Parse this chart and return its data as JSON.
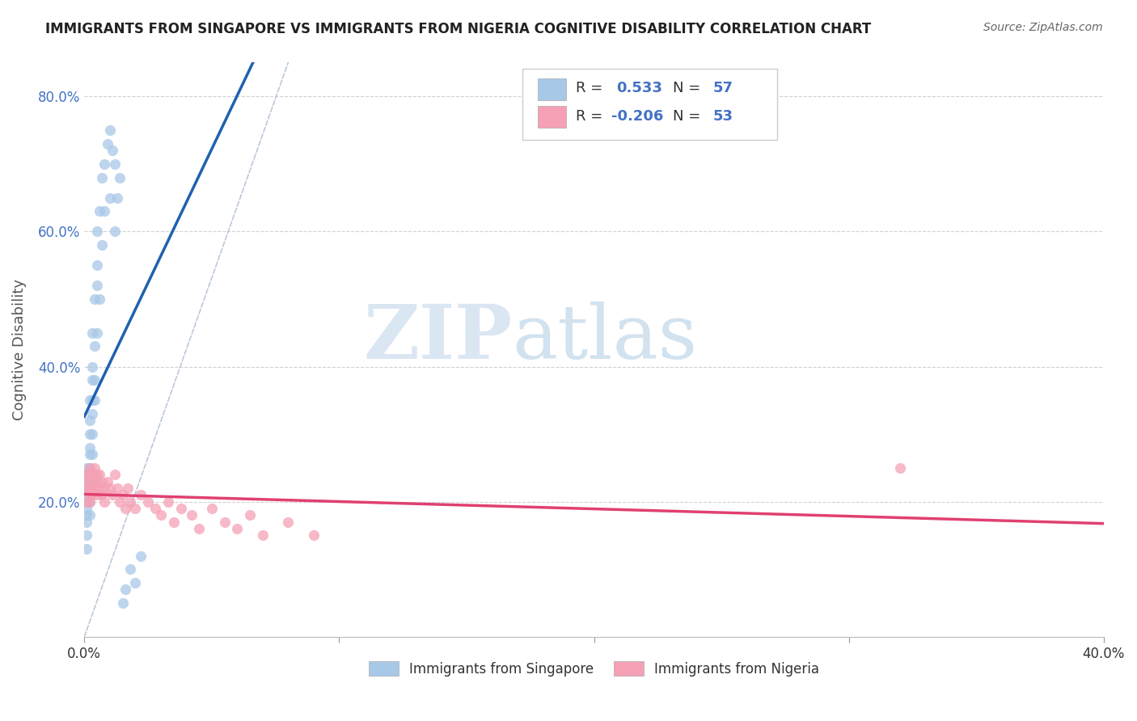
{
  "title": "IMMIGRANTS FROM SINGAPORE VS IMMIGRANTS FROM NIGERIA COGNITIVE DISABILITY CORRELATION CHART",
  "source": "Source: ZipAtlas.com",
  "ylabel": "Cognitive Disability",
  "xlim": [
    0.0,
    0.4
  ],
  "ylim": [
    0.0,
    0.85
  ],
  "xticks": [
    0.0,
    0.1,
    0.2,
    0.3,
    0.4
  ],
  "xticklabels": [
    "0.0%",
    "",
    "",
    "",
    "40.0%"
  ],
  "yticks": [
    0.0,
    0.2,
    0.4,
    0.6,
    0.8
  ],
  "yticklabels": [
    "",
    "20.0%",
    "40.0%",
    "60.0%",
    "80.0%"
  ],
  "singapore_color": "#a8c8e8",
  "nigeria_color": "#f5a0b5",
  "singapore_line_color": "#2060b0",
  "nigeria_line_color": "#e04070",
  "R_singapore": 0.533,
  "N_singapore": 57,
  "R_nigeria": -0.206,
  "N_nigeria": 53,
  "singapore_points_x": [
    0.001,
    0.001,
    0.001,
    0.001,
    0.001,
    0.001,
    0.001,
    0.001,
    0.001,
    0.001,
    0.001,
    0.001,
    0.001,
    0.002,
    0.002,
    0.002,
    0.002,
    0.002,
    0.002,
    0.002,
    0.002,
    0.002,
    0.002,
    0.003,
    0.003,
    0.003,
    0.003,
    0.003,
    0.003,
    0.003,
    0.004,
    0.004,
    0.004,
    0.004,
    0.005,
    0.005,
    0.005,
    0.005,
    0.006,
    0.006,
    0.007,
    0.007,
    0.008,
    0.008,
    0.009,
    0.01,
    0.01,
    0.011,
    0.012,
    0.012,
    0.013,
    0.014,
    0.015,
    0.016,
    0.018,
    0.02,
    0.022
  ],
  "singapore_points_y": [
    0.22,
    0.2,
    0.18,
    0.21,
    0.19,
    0.23,
    0.17,
    0.24,
    0.15,
    0.22,
    0.13,
    0.25,
    0.2,
    0.25,
    0.22,
    0.2,
    0.27,
    0.3,
    0.23,
    0.18,
    0.32,
    0.28,
    0.35,
    0.33,
    0.3,
    0.38,
    0.35,
    0.27,
    0.4,
    0.45,
    0.38,
    0.43,
    0.5,
    0.35,
    0.52,
    0.55,
    0.45,
    0.6,
    0.63,
    0.5,
    0.68,
    0.58,
    0.7,
    0.63,
    0.73,
    0.75,
    0.65,
    0.72,
    0.7,
    0.6,
    0.65,
    0.68,
    0.05,
    0.07,
    0.1,
    0.08,
    0.12
  ],
  "nigeria_points_x": [
    0.001,
    0.001,
    0.001,
    0.001,
    0.002,
    0.002,
    0.002,
    0.002,
    0.002,
    0.003,
    0.003,
    0.003,
    0.003,
    0.004,
    0.004,
    0.004,
    0.005,
    0.005,
    0.005,
    0.006,
    0.006,
    0.007,
    0.007,
    0.008,
    0.008,
    0.009,
    0.01,
    0.011,
    0.012,
    0.013,
    0.014,
    0.015,
    0.016,
    0.017,
    0.018,
    0.02,
    0.022,
    0.025,
    0.028,
    0.03,
    0.033,
    0.035,
    0.038,
    0.042,
    0.045,
    0.05,
    0.055,
    0.06,
    0.065,
    0.07,
    0.08,
    0.09,
    0.32
  ],
  "nigeria_points_y": [
    0.24,
    0.22,
    0.2,
    0.23,
    0.25,
    0.22,
    0.21,
    0.24,
    0.2,
    0.23,
    0.22,
    0.24,
    0.21,
    0.23,
    0.25,
    0.22,
    0.24,
    0.21,
    0.23,
    0.22,
    0.24,
    0.21,
    0.23,
    0.22,
    0.2,
    0.23,
    0.22,
    0.21,
    0.24,
    0.22,
    0.2,
    0.21,
    0.19,
    0.22,
    0.2,
    0.19,
    0.21,
    0.2,
    0.19,
    0.18,
    0.2,
    0.17,
    0.19,
    0.18,
    0.16,
    0.19,
    0.17,
    0.16,
    0.18,
    0.15,
    0.17,
    0.15,
    0.25
  ],
  "watermark_zip": "ZIP",
  "watermark_atlas": "atlas",
  "background_color": "#ffffff",
  "grid_color": "#cccccc"
}
